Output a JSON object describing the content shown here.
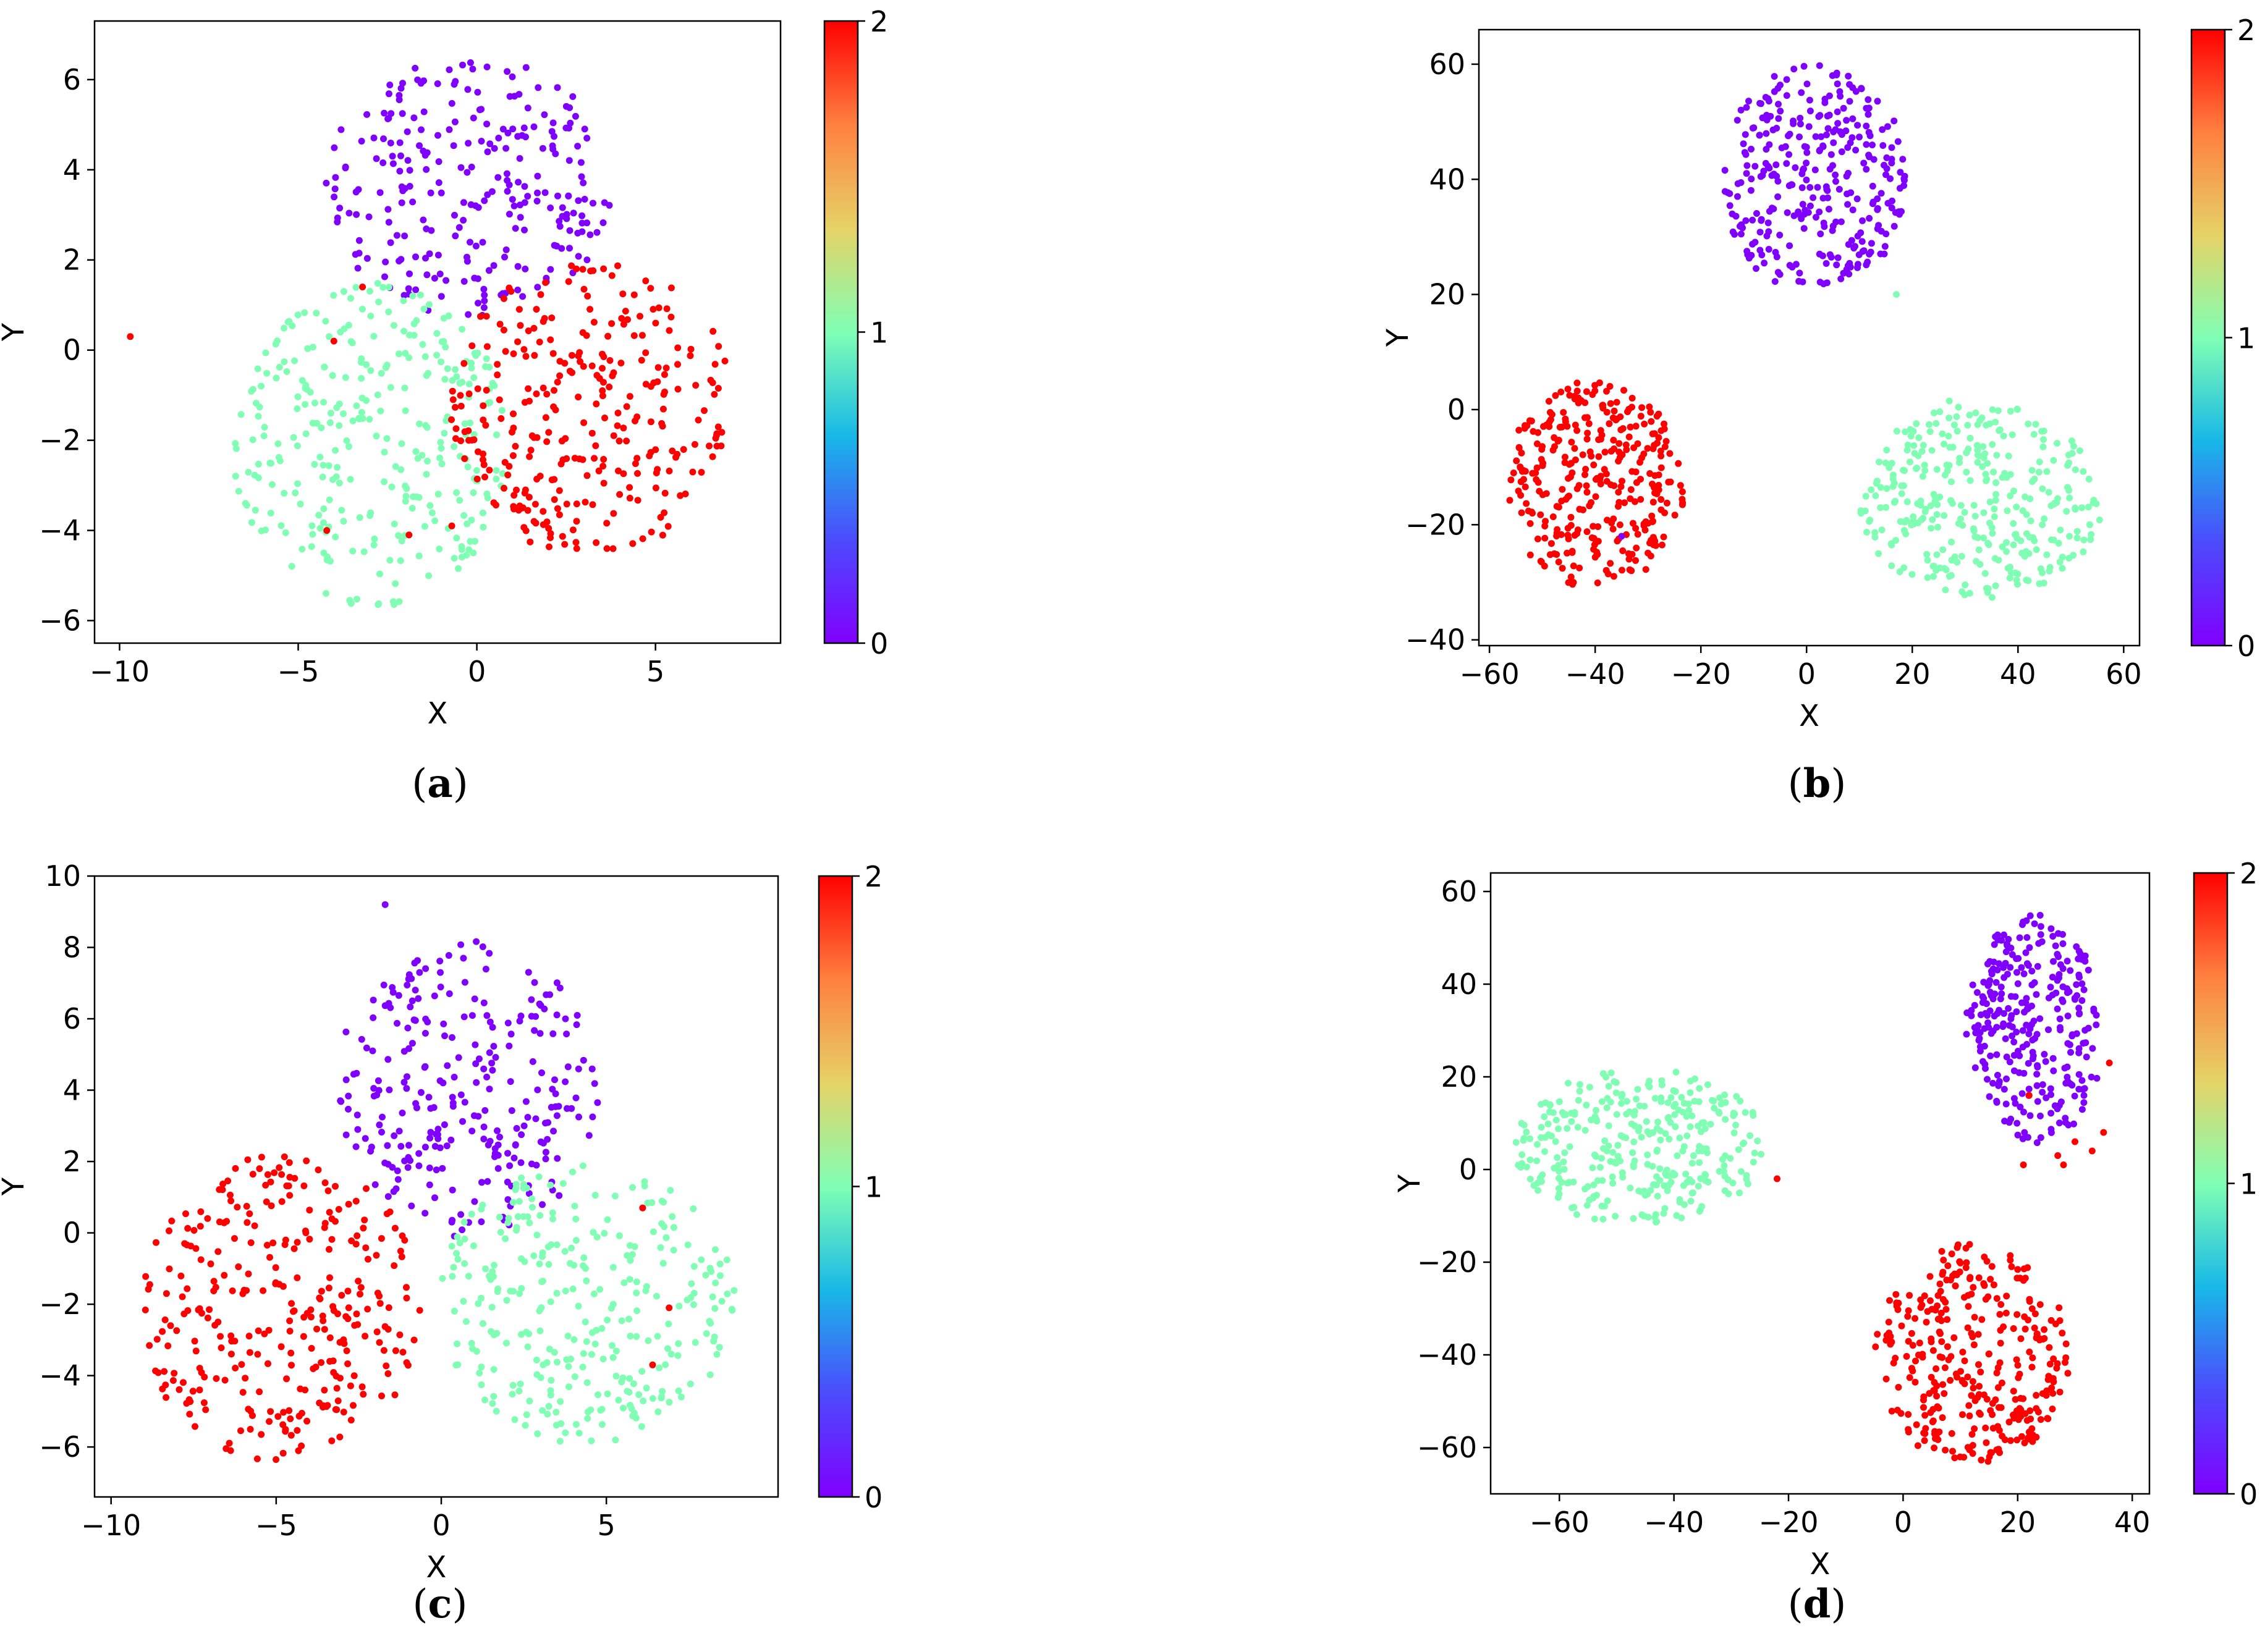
{
  "figure": {
    "colormap": "rainbow",
    "colormap_stops": [
      "#8000ff",
      "#4c4bfd",
      "#18b8e8",
      "#80ffb4",
      "#e6d266",
      "#ff8040",
      "#ff0000"
    ],
    "class_colors": {
      "0": "#7f00ff",
      "1": "#80ffb4",
      "2": "#ff0000"
    }
  },
  "chart_data": [
    {
      "id": "a",
      "type": "scatter",
      "caption": "(a)",
      "xlabel": "X",
      "ylabel": "Y",
      "xlim": [
        -10.7,
        8.5
      ],
      "ylim": [
        -6.5,
        7.3
      ],
      "xticks": [
        -10,
        -5,
        0,
        5
      ],
      "yticks": [
        -6,
        -4,
        -2,
        0,
        2,
        4,
        6
      ],
      "colorbar": {
        "min": 0,
        "max": 2,
        "ticks": [
          0,
          1,
          2
        ]
      },
      "clusters": [
        {
          "label": 0,
          "count": 260,
          "cx": -0.2,
          "cy": 3.6,
          "rx": 4.1,
          "ry": 2.9
        },
        {
          "label": 1,
          "count": 310,
          "cx": -3.0,
          "cy": -2.1,
          "rx": 3.9,
          "ry": 3.6
        },
        {
          "label": 2,
          "count": 300,
          "cx": 3.2,
          "cy": -1.3,
          "rx": 4.0,
          "ry": 3.3
        }
      ],
      "extra_points": [
        {
          "x": -9.7,
          "y": 0.3,
          "label": 2
        },
        {
          "x": -4.0,
          "y": 0.2,
          "label": 2
        },
        {
          "x": -3.2,
          "y": 1.4,
          "label": 2
        },
        {
          "x": -4.2,
          "y": -4.0,
          "label": 2
        },
        {
          "x": -1.9,
          "y": -4.1,
          "label": 2
        },
        {
          "x": -0.7,
          "y": -3.9,
          "label": 2
        }
      ]
    },
    {
      "id": "b",
      "type": "scatter",
      "caption": "(b)",
      "xlabel": "X",
      "ylabel": "Y",
      "xlim": [
        -62,
        63
      ],
      "ylim": [
        -41,
        66
      ],
      "xticks": [
        -60,
        -40,
        -20,
        0,
        20,
        40,
        60
      ],
      "yticks": [
        -40,
        -20,
        0,
        20,
        40,
        60
      ],
      "colorbar": {
        "min": 0,
        "max": 2,
        "ticks": [
          0,
          1,
          2
        ]
      },
      "clusters": [
        {
          "label": 0,
          "count": 320,
          "cx": 1.5,
          "cy": 40.0,
          "rx": 17.5,
          "ry": 20.0
        },
        {
          "label": 1,
          "count": 330,
          "cx": 33.0,
          "cy": -16.0,
          "rx": 23.0,
          "ry": 17.0
        },
        {
          "label": 2,
          "count": 330,
          "cx": -40.0,
          "cy": -13.0,
          "rx": 17.0,
          "ry": 18.0
        }
      ],
      "extra_points": [
        {
          "x": 27.0,
          "y": 1.5,
          "label": 1
        },
        {
          "x": 17.0,
          "y": 20.0,
          "label": 1
        },
        {
          "x": -35.0,
          "y": -22.0,
          "label": 0
        }
      ]
    },
    {
      "id": "c",
      "type": "scatter",
      "caption": "(c)",
      "xlabel": "X",
      "ylabel": "Y",
      "xlim": [
        -10.5,
        10.2
      ],
      "ylim": [
        -7.4,
        10.0
      ],
      "xticks": [
        -10,
        -5,
        0,
        5
      ],
      "yticks": [
        -6,
        -4,
        -2,
        0,
        2,
        4,
        6,
        8,
        10
      ],
      "colorbar": {
        "min": 0,
        "max": 2,
        "ticks": [
          0,
          1,
          2
        ]
      },
      "clusters": [
        {
          "label": 0,
          "count": 270,
          "cx": 0.8,
          "cy": 4.0,
          "rx": 4.0,
          "ry": 4.2
        },
        {
          "label": 1,
          "count": 300,
          "cx": 4.3,
          "cy": -2.0,
          "rx": 4.6,
          "ry": 3.9
        },
        {
          "label": 2,
          "count": 310,
          "cx": -4.9,
          "cy": -2.1,
          "rx": 4.3,
          "ry": 4.3
        }
      ],
      "extra_points": [
        {
          "x": -1.7,
          "y": 9.2,
          "label": 0
        },
        {
          "x": 6.1,
          "y": 0.7,
          "label": 2
        },
        {
          "x": 6.4,
          "y": -3.7,
          "label": 2
        },
        {
          "x": 6.9,
          "y": -2.1,
          "label": 2
        }
      ]
    },
    {
      "id": "d",
      "type": "scatter",
      "caption": "(d)",
      "xlabel": "X",
      "ylabel": "Y",
      "xlim": [
        -72,
        43
      ],
      "ylim": [
        -70,
        64
      ],
      "xticks": [
        -60,
        -40,
        -20,
        0,
        20,
        40
      ],
      "yticks": [
        -60,
        -40,
        -20,
        0,
        20,
        40,
        60
      ],
      "colorbar": {
        "min": 0,
        "max": 2,
        "ticks": [
          0,
          1,
          2
        ]
      },
      "clusters": [
        {
          "label": 0,
          "count": 300,
          "cx": 23.0,
          "cy": 30.0,
          "rx": 12.0,
          "ry": 25.0
        },
        {
          "label": 1,
          "count": 330,
          "cx": -46.0,
          "cy": 5.0,
          "rx": 22.0,
          "ry": 17.0
        },
        {
          "label": 2,
          "count": 330,
          "cx": 12.0,
          "cy": -40.0,
          "rx": 17.0,
          "ry": 24.0
        }
      ],
      "extra_points": [
        {
          "x": 27.0,
          "y": 3.0,
          "label": 2
        },
        {
          "x": 28.0,
          "y": 1.0,
          "label": 2
        },
        {
          "x": 30.0,
          "y": 6.0,
          "label": 2
        },
        {
          "x": 33.0,
          "y": 4.0,
          "label": 2
        },
        {
          "x": 35.0,
          "y": 8.0,
          "label": 2
        },
        {
          "x": 36.0,
          "y": 23.0,
          "label": 2
        },
        {
          "x": 22.0,
          "y": 16.0,
          "label": 2
        },
        {
          "x": 21.0,
          "y": 1.0,
          "label": 2
        },
        {
          "x": -22.0,
          "y": -2.0,
          "label": 2
        }
      ]
    }
  ]
}
